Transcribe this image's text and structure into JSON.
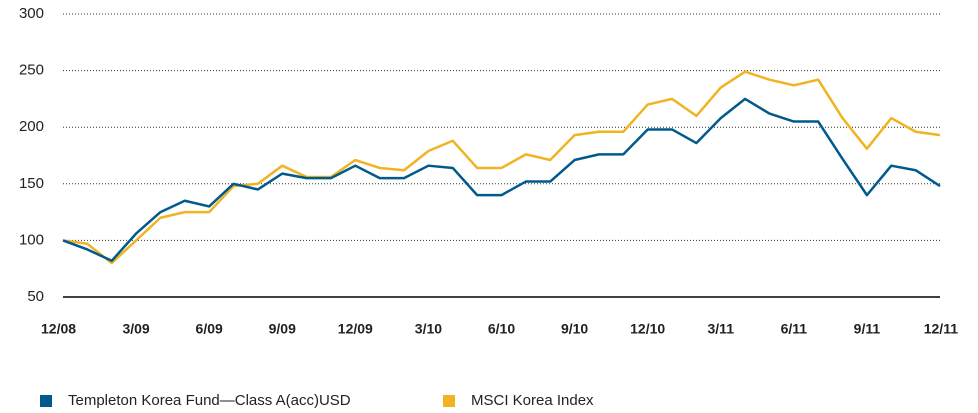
{
  "chart_data": {
    "type": "line",
    "categories": [
      "12/08",
      null,
      null,
      "3/09",
      null,
      null,
      "6/09",
      null,
      null,
      "9/09",
      null,
      null,
      "12/09",
      null,
      null,
      "3/10",
      null,
      null,
      "6/10",
      null,
      null,
      "9/10",
      null,
      null,
      "12/10",
      null,
      null,
      "3/11",
      null,
      null,
      "6/11",
      null,
      null,
      "9/11",
      null,
      null,
      "12/11"
    ],
    "series": [
      {
        "name": "Templeton Korea Fund—Class A(acc)USD",
        "color": "#005a8c",
        "values": [
          100,
          92,
          82,
          106,
          125,
          135,
          130,
          150,
          145,
          159,
          155,
          155,
          166,
          155,
          155,
          166,
          164,
          140,
          140,
          152,
          152,
          171,
          176,
          176,
          198,
          198,
          186,
          208,
          225,
          212,
          205,
          205,
          172,
          140,
          166,
          162,
          148
        ]
      },
      {
        "name": "MSCI Korea Index",
        "color": "#f0b323",
        "values": [
          100,
          97,
          80,
          100,
          120,
          125,
          125,
          148,
          150,
          166,
          156,
          156,
          171,
          164,
          162,
          179,
          188,
          164,
          164,
          176,
          171,
          193,
          196,
          196,
          220,
          225,
          210,
          235,
          249,
          242,
          237,
          242,
          208,
          181,
          208,
          196,
          193
        ]
      }
    ],
    "ylim": [
      50,
      300
    ],
    "yticks": [
      50,
      100,
      150,
      200,
      250,
      300
    ],
    "grid": true
  }
}
